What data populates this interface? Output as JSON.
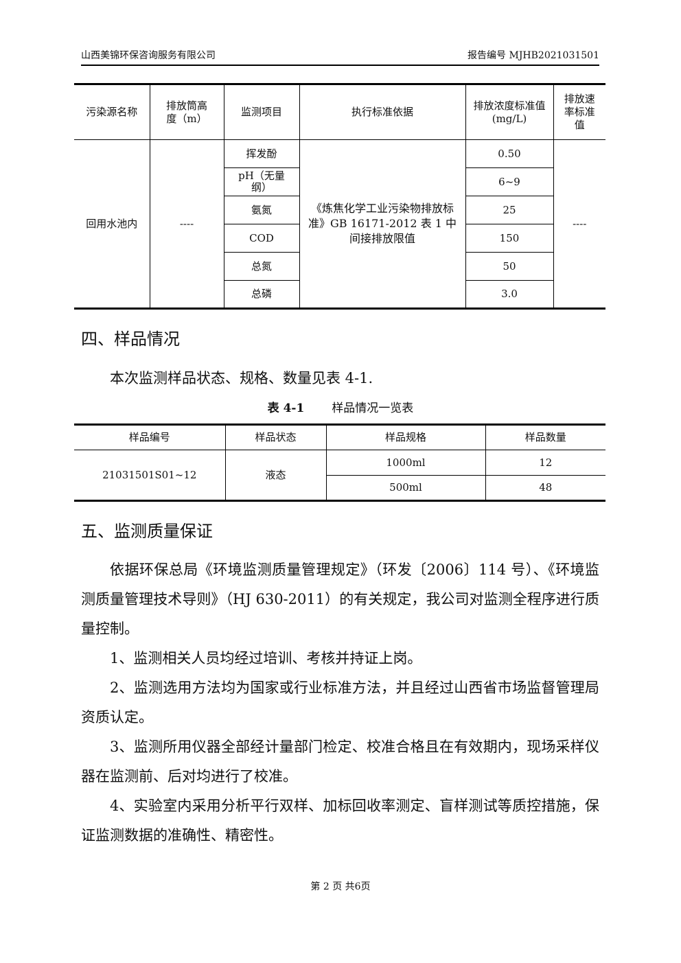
{
  "header": {
    "company": "山西美锦环保咨询服务有限公司",
    "report_no": "报告编号 MJHB2021031501"
  },
  "table1": {
    "headers": [
      "污染源名称",
      "排放筒高度（m）",
      "监测项目",
      "执行标准依据",
      "排放浓度标准值(mg/L)",
      "排放速率标准值"
    ],
    "source": "回用水池内",
    "height": "----",
    "standard": "《炼焦化学工业污染物排放标准》GB 16171-2012 表 1 中间接排放限值",
    "rate": "----",
    "rows": [
      {
        "item": "挥发酚",
        "value": "0.50"
      },
      {
        "item": "pH（无量纲）",
        "value": "6~9"
      },
      {
        "item": "氨氮",
        "value": "25"
      },
      {
        "item": "COD",
        "value": "150"
      },
      {
        "item": "总氮",
        "value": "50"
      },
      {
        "item": "总磷",
        "value": "3.0"
      }
    ]
  },
  "section4": {
    "title": "四、样品情况",
    "text": "本次监测样品状态、规格、数量见表 4-1.",
    "caption_no": "表 4-1",
    "caption": "样品情况一览表"
  },
  "table2": {
    "headers": [
      "样品编号",
      "样品状态",
      "样品规格",
      "样品数量"
    ],
    "sample_id": "21031501S01~12",
    "state": "液态",
    "rows": [
      {
        "spec": "1000ml",
        "count": "12"
      },
      {
        "spec": "500ml",
        "count": "48"
      }
    ]
  },
  "section5": {
    "title": "五、监测质量保证",
    "paragraphs": [
      "依据环保总局《环境监测质量管理规定》（环发〔2006〕114 号）、《环境监测质量管理技术导则》（HJ 630-2011）的有关规定，我公司对监测全程序进行质量控制。",
      "1、监测相关人员均经过培训、考核并持证上岗。",
      "2、监测选用方法均为国家或行业标准方法，并且经过山西省市场监督管理局资质认定。",
      "3、监测所用仪器全部经计量部门检定、校准合格且在有效期内，现场采样仪器在监测前、后对均进行了校准。",
      "4、实验室内采用分析平行双样、加标回收率测定、盲样测试等质控措施，保证监测数据的准确性、精密性。"
    ]
  },
  "footer": "第 2 页 共6页"
}
